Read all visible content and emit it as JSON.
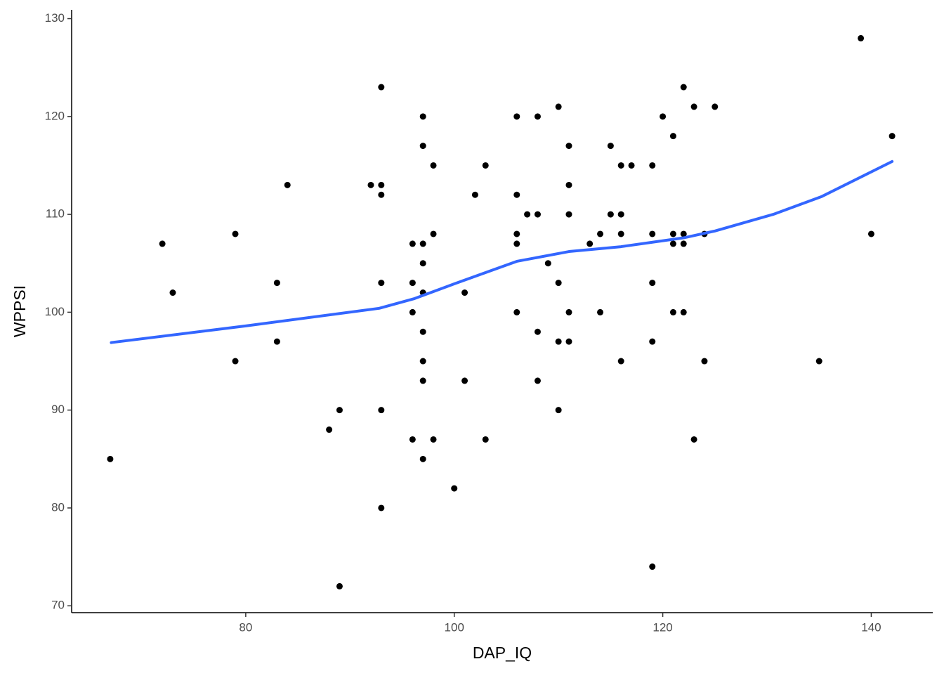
{
  "chart_data": {
    "type": "scatter",
    "x_label": "DAP_IQ",
    "y_label": "WPPSI",
    "xlim": [
      63.3,
      145.9
    ],
    "ylim": [
      69.3,
      130.9
    ],
    "xticks": [
      80,
      100,
      120,
      140
    ],
    "yticks": [
      70,
      80,
      90,
      100,
      110,
      120,
      130
    ],
    "grid": false,
    "points": {
      "color": "#000000",
      "x": [
        67,
        72,
        73,
        79,
        79,
        83,
        83,
        84,
        88,
        89,
        89,
        92,
        93,
        93,
        93,
        93,
        93,
        93,
        96,
        96,
        96,
        96,
        97,
        97,
        97,
        97,
        97,
        97,
        97,
        97,
        97,
        98,
        98,
        98,
        100,
        101,
        101,
        102,
        103,
        103,
        106,
        106,
        106,
        106,
        106,
        107,
        108,
        108,
        108,
        108,
        109,
        110,
        110,
        110,
        110,
        111,
        111,
        111,
        111,
        111,
        113,
        114,
        114,
        115,
        115,
        116,
        116,
        116,
        116,
        117,
        119,
        119,
        119,
        119,
        119,
        120,
        121,
        121,
        121,
        121,
        122,
        122,
        122,
        122,
        123,
        123,
        124,
        124,
        125,
        135,
        139,
        140,
        142
      ],
      "values": [
        85,
        107,
        102,
        108,
        95,
        103,
        97,
        113,
        88,
        90,
        72,
        113,
        123,
        113,
        112,
        103,
        90,
        80,
        107,
        103,
        87,
        100,
        120,
        117,
        107,
        105,
        102,
        98,
        95,
        93,
        85,
        115,
        108,
        87,
        82,
        102,
        93,
        112,
        115,
        87,
        120,
        112,
        108,
        107,
        100,
        110,
        120,
        110,
        98,
        93,
        105,
        121,
        103,
        97,
        90,
        117,
        113,
        110,
        100,
        97,
        107,
        108,
        100,
        117,
        110,
        115,
        110,
        108,
        95,
        115,
        115,
        108,
        103,
        97,
        74,
        120,
        118,
        108,
        107,
        100,
        123,
        108,
        107,
        100,
        121,
        87,
        108,
        95,
        121,
        95,
        128,
        108,
        118
      ]
    },
    "trend": {
      "type": "line",
      "color": "#3366ff",
      "x": [
        67.1,
        80,
        92.8,
        96.2,
        100,
        106,
        111,
        116,
        122,
        125,
        130.6,
        135.2,
        142
      ],
      "values": [
        96.9,
        98.6,
        100.4,
        101.4,
        102.9,
        105.2,
        106.2,
        106.7,
        107.6,
        108.3,
        110,
        111.8,
        115.4
      ]
    }
  }
}
